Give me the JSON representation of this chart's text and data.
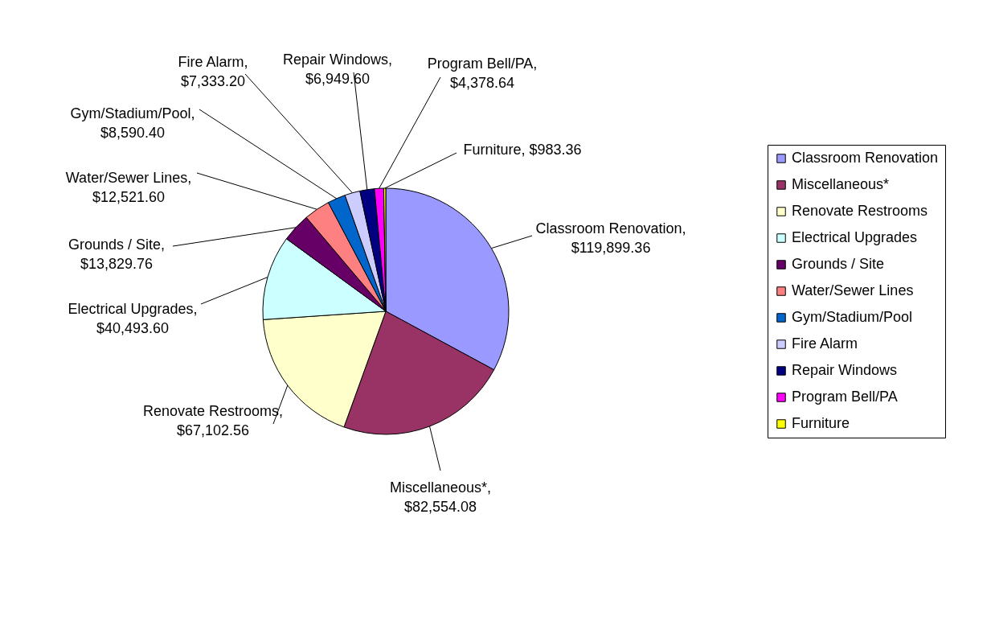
{
  "chart_data": {
    "type": "pie",
    "categories": [
      "Classroom Renovation",
      "Miscellaneous*",
      "Renovate Restrooms",
      "Electrical Upgrades",
      "Grounds / Site",
      "Water/Sewer Lines",
      "Gym/Stadium/Pool",
      "Fire Alarm",
      "Repair Windows",
      "Program Bell/PA",
      "Furniture"
    ],
    "values": [
      119899.36,
      82554.08,
      67102.56,
      40493.6,
      13829.76,
      12521.6,
      8590.4,
      7333.2,
      6949.6,
      4378.64,
      983.36
    ],
    "value_labels": [
      "Classroom Renovation, $119,899.36",
      "Miscellaneous*, $82,554.08",
      "Renovate Restrooms, $67,102.56",
      "Electrical Upgrades, $40,493.60",
      "Grounds / Site, $13,829.76",
      "Water/Sewer Lines, $12,521.60",
      "Gym/Stadium/Pool, $8,590.40",
      "Fire Alarm, $7,333.20",
      "Repair Windows, $6,949.60",
      "Program Bell/PA, $4,378.64",
      "Furniture, $983.36"
    ],
    "colors": [
      "#9999ff",
      "#993366",
      "#ffffcc",
      "#ccffff",
      "#660066",
      "#ff8080",
      "#0066cc",
      "#ccccff",
      "#000080",
      "#ff00ff",
      "#ffff00"
    ],
    "legend": "right"
  }
}
